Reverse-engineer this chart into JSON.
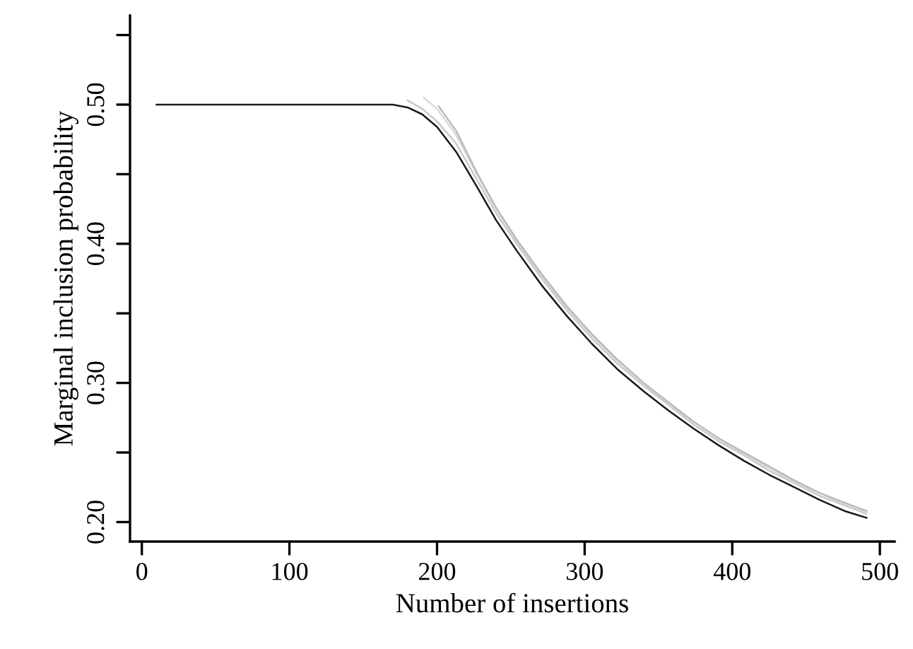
{
  "chart_data": {
    "type": "line",
    "xlabel": "Number of insertions",
    "ylabel": "Marginal inclusion probability",
    "xlim": [
      -8,
      510
    ],
    "ylim": [
      0.186,
      0.564
    ],
    "xticks": [
      0,
      100,
      200,
      300,
      400,
      500
    ],
    "yticks": [
      {
        "value": 0.2,
        "label": "0.20"
      },
      {
        "value": 0.25,
        "label": null
      },
      {
        "value": 0.3,
        "label": "0.30"
      },
      {
        "value": 0.35,
        "label": null
      },
      {
        "value": 0.4,
        "label": "0.40"
      },
      {
        "value": 0.45,
        "label": null
      },
      {
        "value": 0.5,
        "label": "0.50"
      },
      {
        "value": 0.55,
        "label": null
      }
    ],
    "grid": false,
    "marker": "none",
    "line_style": "solid",
    "series": [
      {
        "color": "#c8c8c8",
        "x": [
          180,
          190,
          200,
          213,
          227,
          240,
          254,
          271,
          288,
          305,
          322,
          340,
          357,
          374,
          391,
          408,
          425,
          442,
          459,
          476,
          491
        ],
        "values": [
          0.503,
          0.497,
          0.488,
          0.472,
          0.446,
          0.422,
          0.4,
          0.375,
          0.352,
          0.332,
          0.314,
          0.298,
          0.284,
          0.27,
          0.258,
          0.248,
          0.237,
          0.228,
          0.219,
          0.212,
          0.206
        ]
      },
      {
        "color": "#d8d8d8",
        "x": [
          191,
          200,
          213,
          227,
          240,
          254,
          271,
          288,
          305,
          322,
          340,
          357,
          374,
          391,
          408,
          425,
          442,
          459,
          476,
          491
        ],
        "values": [
          0.505,
          0.497,
          0.478,
          0.45,
          0.425,
          0.402,
          0.377,
          0.354,
          0.334,
          0.316,
          0.3,
          0.285,
          0.272,
          0.26,
          0.249,
          0.239,
          0.229,
          0.221,
          0.213,
          0.207
        ]
      },
      {
        "color": "#bbbbbb",
        "x": [
          201,
          213,
          227,
          240,
          254,
          271,
          288,
          305,
          322,
          340,
          357,
          374,
          391,
          408,
          425,
          442,
          459,
          476,
          491
        ],
        "values": [
          0.499,
          0.481,
          0.451,
          0.426,
          0.403,
          0.378,
          0.355,
          0.335,
          0.317,
          0.3,
          0.286,
          0.272,
          0.26,
          0.25,
          0.24,
          0.23,
          0.221,
          0.214,
          0.208
        ]
      },
      {
        "color": "#1a1a1a",
        "x": [
          10,
          170,
          180,
          190,
          200,
          213,
          227,
          240,
          254,
          271,
          288,
          305,
          322,
          340,
          357,
          374,
          391,
          408,
          425,
          442,
          459,
          476,
          491
        ],
        "values": [
          0.5,
          0.5,
          0.498,
          0.493,
          0.484,
          0.466,
          0.441,
          0.417,
          0.395,
          0.37,
          0.348,
          0.328,
          0.31,
          0.294,
          0.28,
          0.267,
          0.255,
          0.244,
          0.234,
          0.225,
          0.216,
          0.208,
          0.203
        ]
      }
    ]
  }
}
